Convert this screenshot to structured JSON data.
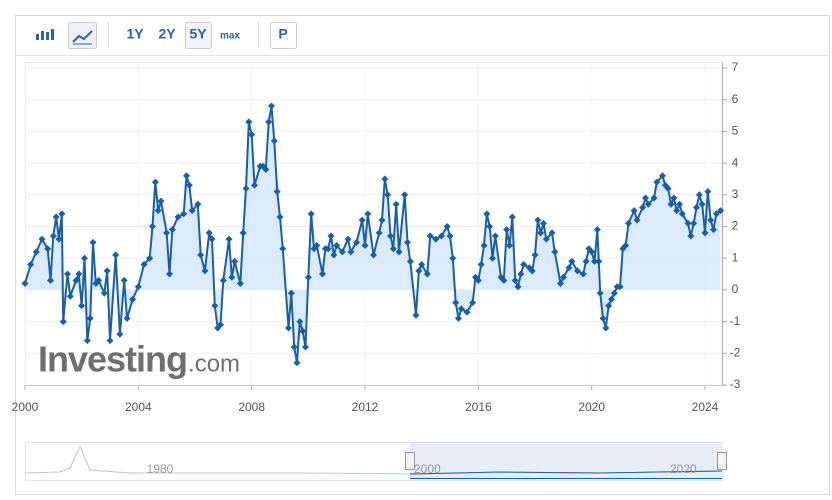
{
  "toolbar": {
    "buttons": [
      "1Y",
      "2Y",
      "5Y",
      "max",
      "P"
    ]
  },
  "watermark": {
    "brand": "Investing",
    "suffix": ".com"
  },
  "navigator": {
    "labels": [
      "1980",
      "2000",
      "2020"
    ]
  },
  "chart_data": {
    "type": "line",
    "area": true,
    "grid": true,
    "markers": true,
    "x": [
      2000.0,
      2000.2,
      2000.4,
      2000.6,
      2000.8,
      2000.9,
      2001.0,
      2001.1,
      2001.2,
      2001.3,
      2001.35,
      2001.5,
      2001.6,
      2001.8,
      2001.9,
      2002.0,
      2002.1,
      2002.2,
      2002.3,
      2002.4,
      2002.5,
      2002.6,
      2002.8,
      2002.9,
      2003.0,
      2003.2,
      2003.35,
      2003.5,
      2003.6,
      2003.8,
      2004.0,
      2004.2,
      2004.4,
      2004.5,
      2004.6,
      2004.7,
      2004.8,
      2005.0,
      2005.1,
      2005.2,
      2005.4,
      2005.6,
      2005.7,
      2005.8,
      2005.9,
      2006.1,
      2006.2,
      2006.35,
      2006.5,
      2006.6,
      2006.7,
      2006.8,
      2006.9,
      2007.0,
      2007.2,
      2007.3,
      2007.4,
      2007.6,
      2007.7,
      2007.8,
      2007.9,
      2008.0,
      2008.1,
      2008.3,
      2008.4,
      2008.5,
      2008.6,
      2008.7,
      2008.8,
      2008.9,
      2009.0,
      2009.1,
      2009.3,
      2009.4,
      2009.5,
      2009.6,
      2009.7,
      2009.8,
      2009.9,
      2010.0,
      2010.1,
      2010.2,
      2010.3,
      2010.5,
      2010.6,
      2010.7,
      2010.8,
      2010.9,
      2011.0,
      2011.2,
      2011.4,
      2011.5,
      2011.7,
      2011.9,
      2012.0,
      2012.1,
      2012.3,
      2012.5,
      2012.6,
      2012.7,
      2012.8,
      2012.9,
      2013.0,
      2013.1,
      2013.2,
      2013.4,
      2013.5,
      2013.6,
      2013.8,
      2013.9,
      2014.0,
      2014.2,
      2014.3,
      2014.5,
      2014.7,
      2014.9,
      2015.0,
      2015.1,
      2015.2,
      2015.3,
      2015.4,
      2015.6,
      2015.8,
      2015.9,
      2016.0,
      2016.1,
      2016.2,
      2016.3,
      2016.4,
      2016.5,
      2016.6,
      2016.8,
      2016.9,
      2017.0,
      2017.1,
      2017.2,
      2017.3,
      2017.4,
      2017.5,
      2017.6,
      2017.8,
      2017.9,
      2018.0,
      2018.1,
      2018.2,
      2018.3,
      2018.4,
      2018.6,
      2018.7,
      2018.9,
      2019.0,
      2019.2,
      2019.3,
      2019.5,
      2019.7,
      2019.8,
      2019.9,
      2020.0,
      2020.1,
      2020.2,
      2020.25,
      2020.3,
      2020.4,
      2020.5,
      2020.6,
      2020.7,
      2020.8,
      2020.9,
      2021.0,
      2021.1,
      2021.2,
      2021.3,
      2021.5,
      2021.6,
      2021.8,
      2021.9,
      2022.0,
      2022.2,
      2022.3,
      2022.5,
      2022.6,
      2022.7,
      2022.8,
      2022.9,
      2023.0,
      2023.1,
      2023.2,
      2023.4,
      2023.5,
      2023.6,
      2023.7,
      2023.8,
      2023.9,
      2024.0,
      2024.1,
      2024.2,
      2024.3,
      2024.4,
      2024.55
    ],
    "series": [
      {
        "color": "#1a5ea6",
        "fill": "#d5e6fb",
        "values": [
          0.2,
          0.8,
          1.2,
          1.6,
          1.3,
          0.3,
          1.7,
          2.3,
          1.6,
          2.4,
          -1.0,
          0.5,
          -0.2,
          0.3,
          0.5,
          -0.5,
          1.0,
          -1.6,
          -0.9,
          1.5,
          0.2,
          0.3,
          -0.1,
          0.6,
          -1.6,
          1.1,
          -1.4,
          0.3,
          -0.9,
          -0.3,
          0.1,
          0.8,
          1.0,
          2.0,
          3.4,
          2.5,
          2.8,
          1.8,
          0.5,
          1.9,
          2.3,
          2.4,
          3.6,
          3.3,
          2.5,
          2.7,
          1.1,
          0.6,
          1.8,
          1.6,
          -0.5,
          -1.2,
          -1.1,
          0.3,
          1.6,
          0.4,
          0.9,
          0.2,
          1.8,
          3.2,
          5.3,
          4.9,
          3.3,
          3.9,
          3.9,
          3.8,
          5.3,
          5.8,
          4.7,
          3.1,
          2.3,
          1.3,
          -1.2,
          -0.1,
          -1.8,
          -2.3,
          -1.0,
          -1.3,
          -1.8,
          0.4,
          2.4,
          1.3,
          1.4,
          0.5,
          1.3,
          1.3,
          1.7,
          1.1,
          1.4,
          1.2,
          1.6,
          1.2,
          1.5,
          2.2,
          1.4,
          2.4,
          1.1,
          1.8,
          2.2,
          3.5,
          3.0,
          1.7,
          1.3,
          2.7,
          1.2,
          3.0,
          1.5,
          0.9,
          -0.8,
          0.6,
          0.8,
          0.5,
          1.7,
          1.6,
          1.7,
          2.0,
          1.7,
          1.0,
          -0.4,
          -0.9,
          -0.6,
          -0.7,
          -0.4,
          0.4,
          0.3,
          0.8,
          1.4,
          2.4,
          2.0,
          1.0,
          1.7,
          0.4,
          0.3,
          1.9,
          1.4,
          2.3,
          0.3,
          0.1,
          0.5,
          0.8,
          0.7,
          0.6,
          1.1,
          2.2,
          1.8,
          2.1,
          1.6,
          1.8,
          1.2,
          0.2,
          0.4,
          0.7,
          0.9,
          0.6,
          0.5,
          0.9,
          1.3,
          1.2,
          0.9,
          1.9,
          0.9,
          -0.1,
          -0.9,
          -1.2,
          -0.5,
          -0.3,
          -0.1,
          0.1,
          0.1,
          1.3,
          1.4,
          2.1,
          2.5,
          2.2,
          2.6,
          2.9,
          2.7,
          2.9,
          3.4,
          3.6,
          3.3,
          3.2,
          2.7,
          2.9,
          2.5,
          2.7,
          2.4,
          2.1,
          1.7,
          2.1,
          2.6,
          3.0,
          2.7,
          1.8,
          3.1,
          2.2,
          1.9,
          2.4,
          2.5
        ]
      }
    ],
    "xlim": [
      2000,
      2024.6
    ],
    "ylim": [
      -3,
      7
    ],
    "xticks": [
      2000,
      2004,
      2008,
      2012,
      2016,
      2020,
      2024
    ],
    "yticks": [
      -3,
      -2,
      -1,
      0,
      1,
      2,
      3,
      4,
      5,
      6,
      7
    ]
  }
}
